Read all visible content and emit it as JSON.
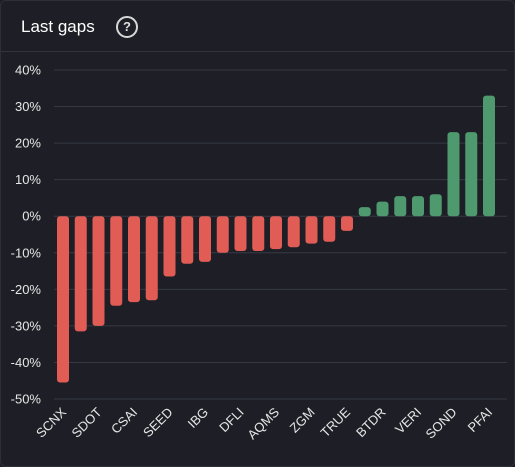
{
  "header": {
    "title": "Last gaps",
    "help_icon": "question-circle-icon",
    "help_glyph": "?"
  },
  "colors": {
    "negative": "#e05c55",
    "positive": "#4e9a6e",
    "grid": "#363844",
    "background": "#1e1f26"
  },
  "chart_data": {
    "type": "bar",
    "title": "",
    "xlabel": "",
    "ylabel": "",
    "ylim": [
      -50,
      40
    ],
    "yticks": [
      "40%",
      "30%",
      "20%",
      "10%",
      "0%",
      "-10%",
      "-20%",
      "-30%",
      "-40%",
      "-50%"
    ],
    "ytick_values": [
      40,
      30,
      20,
      10,
      0,
      -10,
      -20,
      -30,
      -40,
      -50
    ],
    "grid": true,
    "value_unit": "%",
    "categories": [
      "SCNX",
      "",
      "SDOT",
      "",
      "CSAI",
      "",
      "SEED",
      "",
      "IBG",
      "",
      "DFLI",
      "",
      "AQMS",
      "",
      "ZGM",
      "",
      "TRUE",
      "",
      "BTDR",
      "",
      "VERI",
      "",
      "SOND",
      "",
      "PFAI"
    ],
    "values": [
      -45.5,
      -31.5,
      -30,
      -24.5,
      -23.5,
      -23,
      -16.5,
      -13,
      -12.5,
      -10,
      -9.5,
      -9.5,
      -9,
      -8.5,
      -7.5,
      -7,
      -4,
      2.5,
      4,
      5.5,
      5.5,
      6,
      23,
      23,
      33
    ]
  }
}
